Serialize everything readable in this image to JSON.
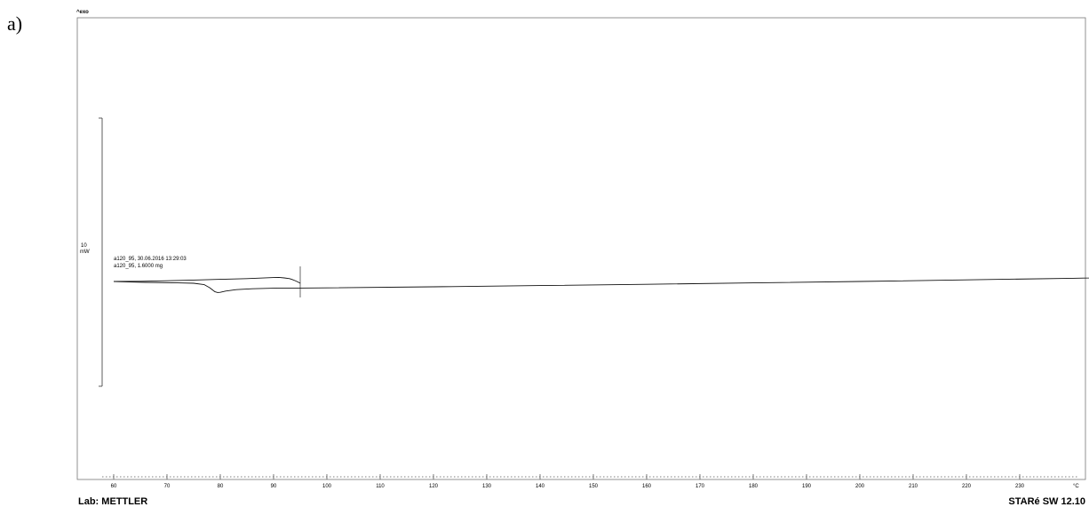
{
  "panel_label": "a)",
  "exo_label": "^exo",
  "footer_left": "Lab: METTLER",
  "footer_right": "STARé SW 12.10",
  "scale_bar": {
    "value": "10",
    "unit": "mW"
  },
  "annotations": [
    "a120_95, 30.06.2016 13:29:03",
    "a120_95, 1.6000 mg"
  ],
  "chart_data": {
    "type": "line",
    "title": "",
    "xlabel": "",
    "ylabel": "",
    "x_unit": "°C",
    "xlim": [
      58,
      280
    ],
    "x_ticks": [
      60,
      70,
      80,
      90,
      100,
      110,
      120,
      130,
      140,
      150,
      160,
      170,
      180,
      190,
      200,
      210,
      220,
      230
    ],
    "ylim": [
      -40,
      10
    ],
    "grid": false,
    "series": [
      {
        "segment": "heating",
        "x": [
          60,
          66,
          72,
          75,
          77,
          78,
          79,
          79.5,
          80,
          81,
          83,
          86,
          90,
          95,
          100,
          120,
          140,
          160,
          180,
          200,
          220,
          240,
          260,
          280
        ],
        "y": [
          0,
          -0.5,
          -0.8,
          -1.0,
          -1.8,
          -3.5,
          -5.8,
          -6.2,
          -6.1,
          -5.4,
          -4.6,
          -4.1,
          -3.8,
          -3.7,
          -3.6,
          -3.0,
          -2.3,
          -1.6,
          -0.8,
          0.0,
          0.9,
          1.8,
          2.9,
          3.9
        ]
      },
      {
        "segment": "cooling",
        "x": [
          95,
          94.5,
          94,
          93.5,
          93,
          92,
          91,
          90,
          85,
          80,
          75,
          70,
          65,
          60
        ],
        "y": [
          -1.0,
          -0.2,
          0.5,
          1.1,
          1.6,
          2.0,
          2.3,
          2.2,
          1.6,
          1.2,
          0.8,
          0.4,
          0.1,
          0.0
        ]
      }
    ]
  }
}
